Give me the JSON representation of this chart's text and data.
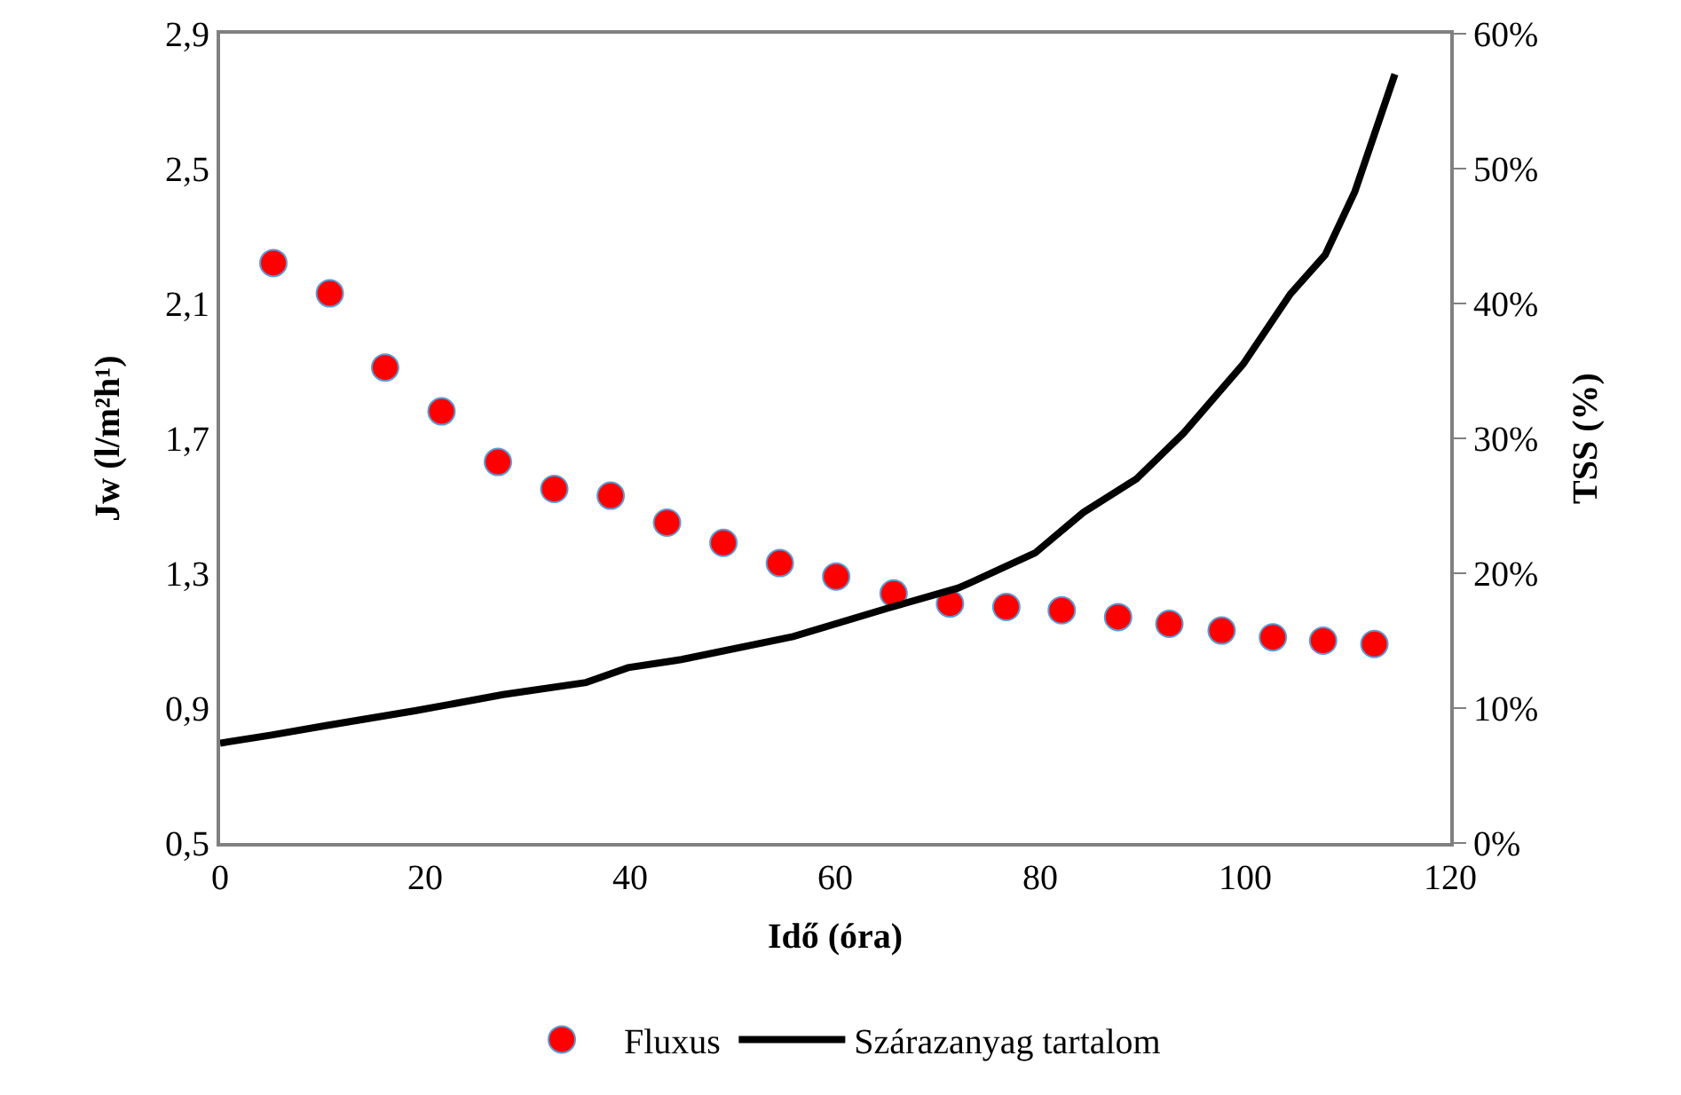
{
  "chart_data": {
    "type": "scatter",
    "xlabel": "Idő (óra)",
    "ylabel": "Jw (l/m²h¹)",
    "y2label": "TSS (%)",
    "xlim": [
      0,
      120
    ],
    "xticks": [
      0,
      20,
      40,
      60,
      80,
      100,
      120
    ],
    "ylim": [
      0.5,
      2.9
    ],
    "yticks": [
      {
        "value": 0.5,
        "label": "0,5"
      },
      {
        "value": 0.9,
        "label": "0,9"
      },
      {
        "value": 1.3,
        "label": "1,3"
      },
      {
        "value": 1.7,
        "label": "1,7"
      },
      {
        "value": 2.1,
        "label": "2,1"
      },
      {
        "value": 2.5,
        "label": "2,5"
      },
      {
        "value": 2.9,
        "label": "2,9"
      }
    ],
    "y2lim": [
      0,
      60
    ],
    "y2ticks": [
      {
        "value": 0,
        "label": "0%"
      },
      {
        "value": 10,
        "label": "10%"
      },
      {
        "value": 20,
        "label": "20%"
      },
      {
        "value": 30,
        "label": "30%"
      },
      {
        "value": 40,
        "label": "40%"
      },
      {
        "value": 50,
        "label": "50%"
      },
      {
        "value": 60,
        "label": "60%"
      }
    ],
    "grid": false,
    "legend": "bottom",
    "series": [
      {
        "name": "Fluxus",
        "type": "scatter",
        "marker": "circle",
        "color": "#ff0000",
        "x": [
          5.2,
          10.7,
          16.1,
          21.6,
          27.1,
          32.6,
          38.1,
          43.6,
          49.1,
          54.6,
          60.1,
          65.7,
          71.2,
          76.7,
          82.1,
          87.6,
          92.6,
          97.7,
          102.7,
          107.6,
          112.6
        ],
        "values": [
          2.22,
          2.13,
          1.91,
          1.78,
          1.63,
          1.55,
          1.53,
          1.45,
          1.39,
          1.33,
          1.29,
          1.24,
          1.21,
          1.2,
          1.19,
          1.17,
          1.15,
          1.13,
          1.11,
          1.1,
          1.09
        ]
      },
      {
        "name": "Szárazanyag tartalom",
        "type": "line",
        "axis": "y2",
        "marker": "none",
        "line_style": "solid",
        "color": "#000000",
        "x": [
          0,
          5,
          10.3,
          19,
          27.6,
          35.7,
          39.8,
          45,
          55.9,
          65.1,
          72,
          73.2,
          79.5,
          84.2,
          89.4,
          94,
          99.8,
          104.4,
          107.8,
          110.7,
          114.6
        ],
        "values": [
          7.4,
          8,
          8.7,
          9.8,
          11,
          11.9,
          13,
          13.6,
          15.3,
          17.4,
          18.9,
          19.3,
          21.5,
          24.5,
          27,
          30.4,
          35.5,
          40.7,
          43.6,
          48.3,
          57
        ]
      }
    ]
  }
}
